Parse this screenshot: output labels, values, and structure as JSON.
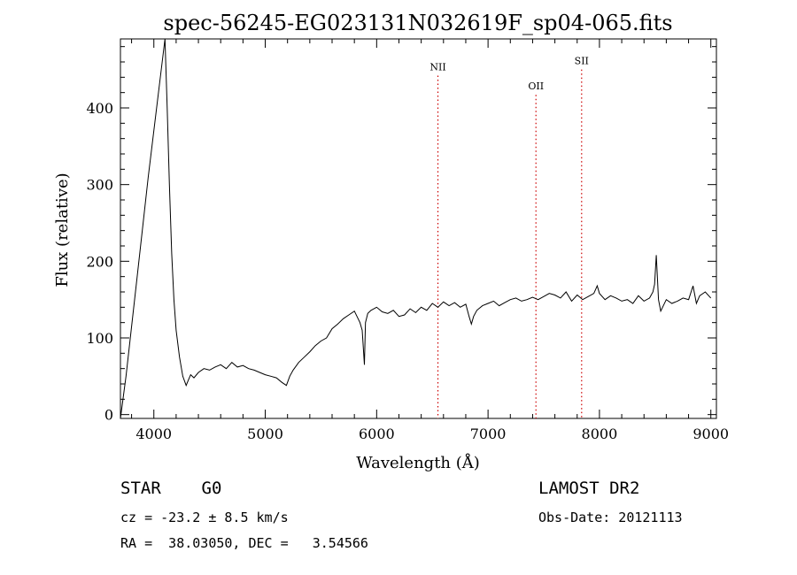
{
  "chart_data": {
    "type": "line",
    "title": "spec-56245-EG023131N032619F_sp04-065.fits",
    "xlabel": "Wavelength (Å)",
    "ylabel": "Flux (relative)",
    "xlim": [
      3700,
      9050
    ],
    "ylim": [
      -5,
      490
    ],
    "xticks": [
      4000,
      5000,
      6000,
      7000,
      8000,
      9000
    ],
    "yticks": [
      0,
      100,
      200,
      300,
      400
    ],
    "grid": false,
    "series": [
      {
        "x": [
          3700,
          3750,
          3850,
          3950,
          4050,
          4100,
          4120,
          4140,
          4160,
          4180,
          4200,
          4230,
          4260,
          4290,
          4310,
          4330,
          4360,
          4400,
          4450,
          4500,
          4550,
          4600,
          4650,
          4700,
          4750,
          4800,
          4850,
          4900,
          4950,
          5000,
          5050,
          5100,
          5150,
          5190,
          5220,
          5250,
          5300,
          5350,
          5400,
          5450,
          5500,
          5550,
          5600,
          5650,
          5700,
          5750,
          5800,
          5850,
          5870,
          5890,
          5900,
          5920,
          5950,
          6000,
          6050,
          6100,
          6150,
          6200,
          6250,
          6300,
          6350,
          6400,
          6450,
          6500,
          6550,
          6600,
          6650,
          6700,
          6750,
          6800,
          6830,
          6850,
          6870,
          6900,
          6950,
          7000,
          7050,
          7100,
          7150,
          7200,
          7250,
          7300,
          7350,
          7400,
          7450,
          7500,
          7550,
          7600,
          7650,
          7700,
          7750,
          7800,
          7850,
          7900,
          7950,
          7980,
          8000,
          8050,
          8100,
          8150,
          8200,
          8250,
          8300,
          8350,
          8400,
          8450,
          8480,
          8495,
          8510,
          8530,
          8550,
          8600,
          8650,
          8700,
          8750,
          8800,
          8840,
          8870,
          8900,
          8950,
          9000
        ],
        "y": [
          -5,
          50,
          180,
          310,
          430,
          490,
          400,
          300,
          210,
          150,
          110,
          75,
          50,
          38,
          45,
          52,
          48,
          55,
          60,
          58,
          62,
          65,
          60,
          68,
          62,
          64,
          60,
          58,
          55,
          52,
          50,
          48,
          42,
          38,
          50,
          58,
          68,
          75,
          82,
          90,
          96,
          100,
          112,
          118,
          125,
          130,
          135,
          120,
          110,
          65,
          120,
          132,
          136,
          140,
          134,
          132,
          136,
          128,
          130,
          138,
          133,
          140,
          136,
          145,
          140,
          147,
          142,
          146,
          140,
          144,
          128,
          118,
          128,
          136,
          142,
          145,
          148,
          142,
          146,
          150,
          152,
          148,
          150,
          153,
          150,
          154,
          158,
          156,
          152,
          160,
          148,
          156,
          150,
          154,
          158,
          168,
          158,
          150,
          155,
          152,
          148,
          150,
          145,
          155,
          148,
          152,
          160,
          170,
          208,
          150,
          135,
          150,
          145,
          148,
          152,
          150,
          168,
          145,
          155,
          160,
          152
        ]
      }
    ],
    "annotations": [
      {
        "label": "NII",
        "x": 6550,
        "label_y": 449
      },
      {
        "label": "OII",
        "x": 7430,
        "label_y": 424
      },
      {
        "label": "SII",
        "x": 7840,
        "label_y": 457
      }
    ],
    "line_color": "#000000",
    "annotation_color": "#cc0000"
  },
  "info": {
    "classification": "STAR    G0",
    "survey": "LAMOST DR2",
    "redshift": "cz = -23.2 ± 8.5 km/s",
    "obs_date": "Obs-Date: 20121113",
    "coords": "RA =  38.03050, DEC =   3.54566"
  }
}
